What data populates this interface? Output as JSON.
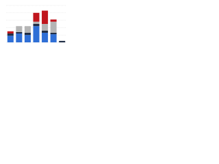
{
  "chart_data": {
    "type": "stacked-bar",
    "categories": [
      null,
      null,
      null,
      null,
      null,
      null,
      null
    ],
    "series": [
      {
        "color": "#2f6fd6",
        "values": [
          9,
          12,
          10,
          22,
          13,
          11,
          0
        ]
      },
      {
        "color": "#1f2d45",
        "values": [
          3,
          2,
          3,
          3,
          3,
          2,
          2
        ]
      },
      {
        "color": "#b5b5b5",
        "values": [
          0,
          8,
          9,
          3,
          9,
          15,
          0
        ]
      },
      {
        "color": "#c0161d",
        "values": [
          3,
          0,
          0,
          12,
          18,
          3,
          0
        ]
      }
    ],
    "ylim": [
      0,
      50
    ],
    "yticks": [
      0,
      10,
      20,
      30,
      40,
      50
    ],
    "grid": true
  }
}
